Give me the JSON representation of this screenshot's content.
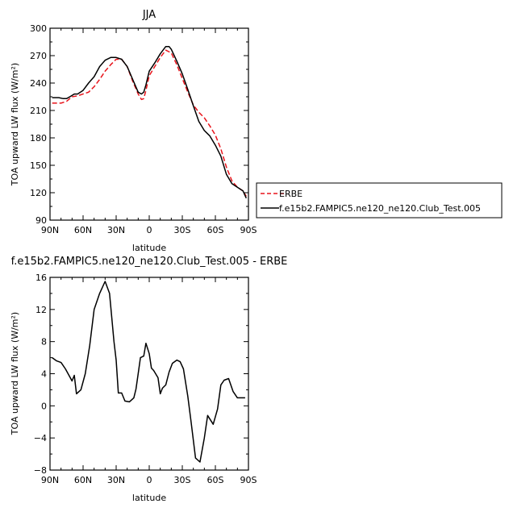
{
  "chart_data": [
    {
      "type": "line",
      "title": "JJA",
      "xlabel": "latitude",
      "ylabel": "TOA upward LW flux (W/m²)",
      "xlim": [
        90,
        -90
      ],
      "ylim": [
        90,
        300
      ],
      "x_ticks": [
        90,
        60,
        30,
        0,
        -30,
        -60,
        -90
      ],
      "x_tick_labels": [
        "90N",
        "60N",
        "30N",
        "0",
        "30S",
        "60S",
        "90S"
      ],
      "y_ticks": [
        90,
        120,
        150,
        180,
        210,
        240,
        270,
        300
      ],
      "legend": "outside-right",
      "series": [
        {
          "name": "ERBE",
          "color": "#e8141b",
          "style": "dashed",
          "x": [
            88,
            80,
            75,
            70,
            65,
            60,
            55,
            50,
            45,
            40,
            35,
            30,
            25,
            20,
            15,
            10,
            7,
            5,
            3,
            0,
            -5,
            -10,
            -15,
            -20,
            -25,
            -30,
            -35,
            -40,
            -45,
            -50,
            -55,
            -60,
            -65,
            -70,
            -75,
            -80,
            -85,
            -88
          ],
          "values": [
            218,
            218,
            220,
            225,
            226,
            228,
            230,
            236,
            244,
            253,
            260,
            266,
            266,
            258,
            242,
            228,
            222,
            223,
            232,
            248,
            258,
            268,
            276,
            273,
            260,
            245,
            230,
            216,
            208,
            202,
            193,
            183,
            168,
            148,
            133,
            126,
            122,
            116
          ]
        },
        {
          "name": "f.e15b2.FAMPIC5.ne120_ne120.Club_Test.005",
          "color": "#000000",
          "style": "solid",
          "x": [
            88,
            82,
            78,
            75,
            72,
            68,
            65,
            60,
            55,
            50,
            45,
            40,
            35,
            30,
            25,
            20,
            15,
            10,
            7,
            5,
            3,
            0,
            -5,
            -10,
            -15,
            -18,
            -20,
            -25,
            -30,
            -35,
            -40,
            -45,
            -50,
            -55,
            -60,
            -65,
            -70,
            -75,
            -80,
            -85,
            -88
          ],
          "values": [
            224,
            224,
            223,
            223,
            225,
            228,
            228,
            232,
            240,
            247,
            258,
            265,
            268,
            268,
            266,
            258,
            244,
            230,
            228,
            230,
            238,
            253,
            262,
            272,
            280,
            280,
            277,
            264,
            250,
            233,
            215,
            198,
            188,
            182,
            172,
            160,
            140,
            130,
            126,
            122,
            114
          ]
        }
      ]
    },
    {
      "type": "line",
      "title": "f.e15b2.FAMPIC5.ne120_ne120.Club_Test.005 - ERBE",
      "xlabel": "latitude",
      "ylabel": "TOA upward LW flux (W/m²)",
      "xlim": [
        90,
        -90
      ],
      "ylim": [
        -8,
        16
      ],
      "x_ticks": [
        90,
        60,
        30,
        0,
        -30,
        -60,
        -90
      ],
      "x_tick_labels": [
        "90N",
        "60N",
        "30N",
        "0",
        "30S",
        "60S",
        "90S"
      ],
      "y_ticks": [
        -8,
        -4,
        0,
        4,
        8,
        12,
        16
      ],
      "series": [
        {
          "color": "#000000",
          "style": "solid",
          "x": [
            88,
            84,
            80,
            76,
            72,
            70,
            68,
            66,
            62,
            58,
            54,
            50,
            45,
            40,
            36,
            32,
            30,
            28,
            25,
            22,
            18,
            14,
            12,
            10,
            8,
            5,
            3,
            0,
            -2,
            -4,
            -8,
            -10,
            -12,
            -15,
            -18,
            -21,
            -25,
            -28,
            -31,
            -35,
            -38,
            -42,
            -46,
            -50,
            -53,
            -58,
            -62,
            -65,
            -68,
            -72,
            -76,
            -80,
            -84,
            -87
          ],
          "values": [
            6,
            5.6,
            5.4,
            4.6,
            3.6,
            3.1,
            3.8,
            1.5,
            2,
            4,
            7.5,
            12,
            14,
            15.5,
            14,
            8,
            5.7,
            1.6,
            1.6,
            0.6,
            0.5,
            1,
            2.1,
            4,
            6,
            6.2,
            7.8,
            6.5,
            4.7,
            4.4,
            3.5,
            1.5,
            2.2,
            2.6,
            4.2,
            5.3,
            5.7,
            5.5,
            4.6,
            1.2,
            -2,
            -6.5,
            -7,
            -4,
            -1.2,
            -2.3,
            -0.4,
            2.6,
            3.2,
            3.4,
            1.8,
            1,
            1,
            1
          ]
        }
      ]
    }
  ]
}
